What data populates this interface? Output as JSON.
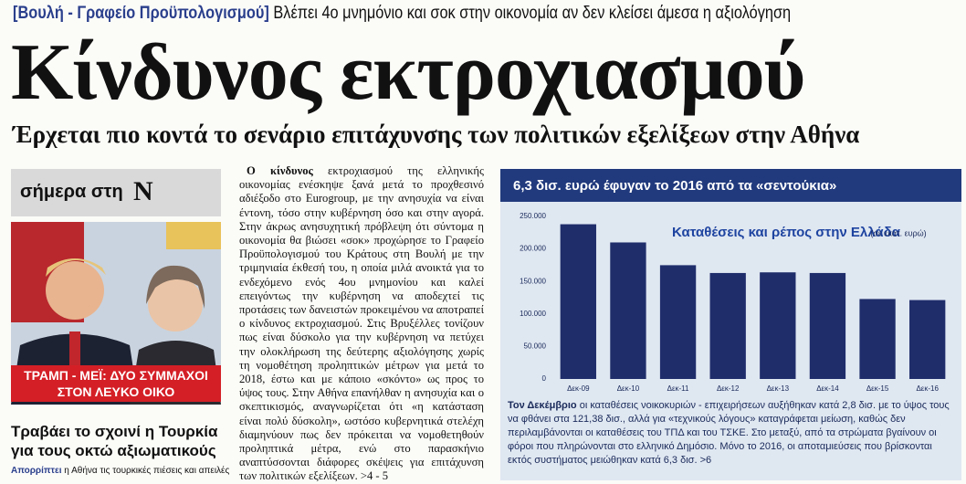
{
  "header": {
    "kicker": "[Βουλή - Γραφείο Προϋπολογισμού]",
    "strapline": "Βλέπει 4ο μνημόνιο και σοκ στην οικονομία αν δεν κλείσει άμεσα η αξιολόγηση"
  },
  "headline": "Κίνδυνος εκτροχιασμού",
  "subheadline": "Έρχεται πιο κοντά το σενάριο επιτάχυνσης των πολιτικών εξελίξεων στην Αθήνα",
  "sidebar": {
    "label": "σήμερα στη",
    "logo": "N",
    "photo_caption": "ΤΡΑΜΠ - ΜΕΪ: ΔΥΟ ΣΥΜΜΑΧΟΙ ΣΤΟΝ ΛΕΥΚΟ ΟΙΚΟ",
    "headline": "Τραβάει το σχοινί η Τουρκία για τους οκτώ αξιωματικούς",
    "lead_bold": "Απορρίπτει",
    "lead": "η Αθήνα τις τουρκικές πιέσεις και απειλές"
  },
  "article": {
    "lead_bold": "Ο κίνδυνος",
    "text": "εκτροχιασμού της ελληνικής οικονομίας ενέσκηψε ξανά μετά το προχθεσινό αδιέξοδο στο Eurogroup, με την ανησυχία να είναι έντονη, τόσο στην κυβέρνηση όσο και στην αγορά. Στην άκρως ανησυχητική πρόβλεψη ότι σύντομα η οικονομία θα βιώσει «σοκ» προχώρησε το Γραφείο Προϋπολογισμού του Κράτους στη Βουλή με την τριμηνιαία έκθεσή του, η οποία μιλά ανοικτά για το ενδεχόμενο ενός 4ου μνημονίου και καλεί επειγόντως την κυβέρνηση να αποδεχτεί τις προτάσεις των δανειστών προκειμένου να αποτραπεί ο κίνδυνος εκτροχιασμού. Στις Βρυξέλλες τονίζουν πως είναι δύσκολο για την κυβέρνηση να πετύχει την ολοκλήρωση της δεύτερης αξιολόγησης χωρίς τη νομοθέτηση προληπτικών μέτρων για μετά το 2018, έστω και με κάποιο «σκόντο» ως προς το ύψος τους. Στην Αθήνα επανήλθαν η ανησυχία και ο σκεπτικισμός, αναγνωρίζεται ότι «η κατάσταση είναι πολύ δύσκολη», ωστόσο κυβερνητικά στελέχη διαμηνύουν πως δεν πρόκειται να νομοθετηθούν προληπτικά μέτρα, ενώ στο παρασκήνιο αναπτύσσονται διάφορες σκέψεις για επιτάχυνση των πολιτικών εξελίξεων. >4 - 5"
  },
  "chart_box_title": "6,3 δισ. ευρώ έφυγαν το 2016 από τα «σεντούκια»",
  "chart_data": {
    "type": "bar",
    "title": "Καταθέσεις και ρέπος στην Ελλάδα",
    "subtitle": "(σε εκατ. ευρώ)",
    "categories": [
      "Δεκ-09",
      "Δεκ-10",
      "Δεκ-11",
      "Δεκ-12",
      "Δεκ-13",
      "Δεκ-14",
      "Δεκ-15",
      "Δεκ-16"
    ],
    "values": [
      238000,
      210000,
      175000,
      163000,
      164000,
      163000,
      123000,
      121380
    ],
    "color": "#1f2d6b",
    "ylim": [
      0,
      250000
    ],
    "yticks": [
      0,
      {
        "value": 50000,
        "label": "50.000"
      },
      {
        "value": 100000,
        "label": "100.000"
      },
      {
        "value": 150000,
        "label": "150.000"
      },
      {
        "value": 200000,
        "label": "200.000"
      },
      {
        "value": 250000,
        "label": "250.000"
      }
    ],
    "grid": false
  },
  "chart_caption": {
    "lead_bold": "Τον Δεκέμβριο",
    "text": "οι καταθέσεις νοικοκυριών - επιχειρήσεων αυξήθηκαν κατά 2,8 δισ. με το ύψος τους να φθάνει στα 121,38 δισ., αλλά για «τεχνικούς λόγους» καταγράφεται μείωση, καθώς δεν περιλαμβάνονται οι καταθέσεις του ΤΠΔ και του ΤΣΚΕ. Στο μεταξύ, από τα στρώματα βγαίνουν οι φόροι που πληρώνονται στο ελληνικό Δημόσιο. Μόνο το 2016, οι αποταμιεύσεις που βρίσκονται εκτός συστήματος μειώθηκαν κατά 6,3 δισ. >6"
  }
}
